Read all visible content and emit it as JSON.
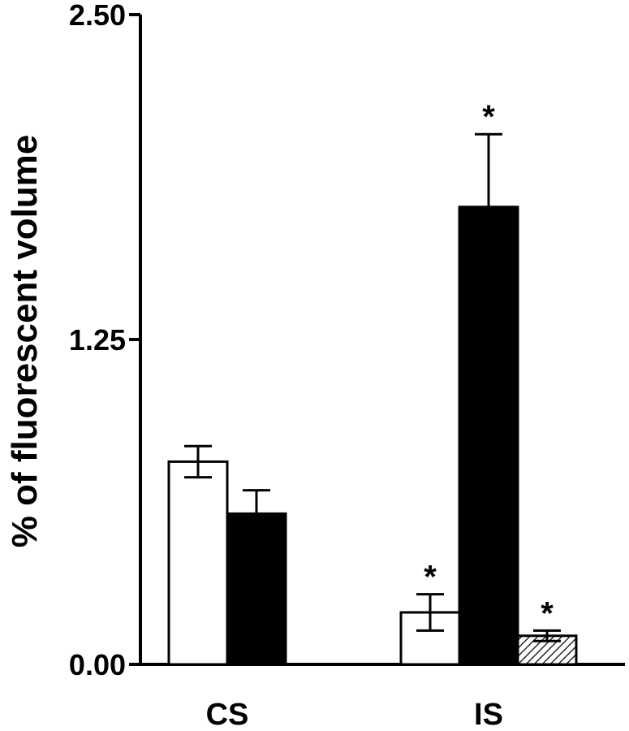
{
  "chart_data": {
    "type": "bar",
    "title": "",
    "xlabel": "",
    "ylabel": "% of fluorescent volume",
    "ylim": [
      0,
      2.5
    ],
    "yticks": [
      "0.00",
      "1.25",
      "2.50"
    ],
    "categories": [
      "CS",
      "IS"
    ],
    "series": [
      {
        "fill": "white",
        "values": [
          0.78,
          0.2
        ],
        "errors": [
          0.06,
          0.07
        ],
        "significant": [
          false,
          true
        ]
      },
      {
        "fill": "black",
        "values": [
          0.58,
          1.76
        ],
        "errors": [
          0.09,
          0.28
        ],
        "significant": [
          false,
          true
        ]
      },
      {
        "fill": "hatched",
        "values": [
          null,
          0.11
        ],
        "errors": [
          null,
          0.02
        ],
        "significant": [
          null,
          true
        ]
      }
    ],
    "significance_marker": "*",
    "grid": false,
    "legend": false
  },
  "colors": {
    "ink": "#000000",
    "background": "#ffffff"
  }
}
